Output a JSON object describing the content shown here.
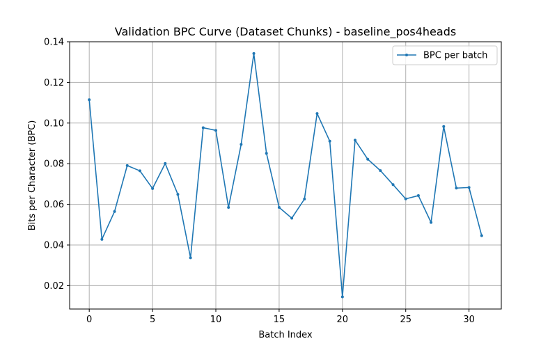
{
  "chart_data": {
    "type": "line",
    "title": "Validation BPC Curve (Dataset Chunks) - baseline_pos4heads",
    "xlabel": "Batch Index",
    "ylabel": "Bits per Character (BPC)",
    "xlim": [
      -1.55,
      32.55
    ],
    "ylim": [
      0.0085,
      0.14
    ],
    "xticks": [
      0,
      5,
      10,
      15,
      20,
      25,
      30
    ],
    "yticks": [
      0.02,
      0.04,
      0.06,
      0.08,
      0.1,
      0.12,
      0.14
    ],
    "ytick_labels": [
      "0.02",
      "0.04",
      "0.06",
      "0.08",
      "0.10",
      "0.12",
      "0.14"
    ],
    "grid": true,
    "legend_position": "top-right",
    "colors": {
      "line": "#1f77b4",
      "grid": "#b0b0b0",
      "axis": "#000000"
    },
    "series": [
      {
        "name": "BPC per batch",
        "x": [
          0,
          1,
          2,
          3,
          4,
          5,
          6,
          7,
          8,
          9,
          10,
          11,
          12,
          13,
          14,
          15,
          16,
          17,
          18,
          19,
          20,
          21,
          22,
          23,
          24,
          25,
          26,
          27,
          28,
          29,
          30,
          31
        ],
        "values": [
          0.1115,
          0.0428,
          0.0565,
          0.0791,
          0.0765,
          0.0678,
          0.0801,
          0.0649,
          0.0337,
          0.0977,
          0.0964,
          0.0585,
          0.0895,
          0.1342,
          0.0851,
          0.0585,
          0.0532,
          0.0626,
          0.1047,
          0.0911,
          0.0145,
          0.0916,
          0.0822,
          0.0766,
          0.0697,
          0.0627,
          0.0643,
          0.0511,
          0.0983,
          0.068,
          0.0683,
          0.0446
        ]
      }
    ]
  }
}
